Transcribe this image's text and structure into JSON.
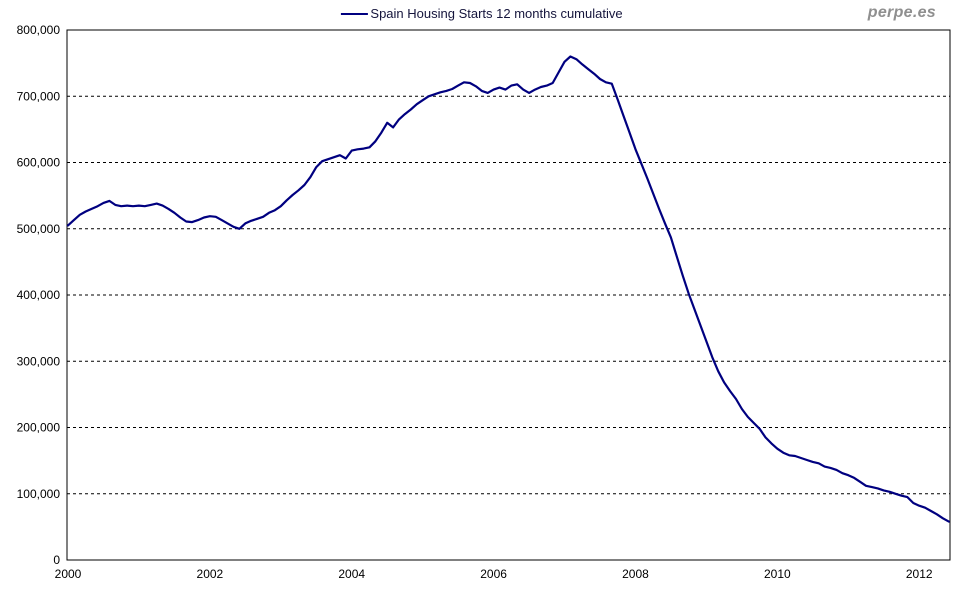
{
  "header": {
    "watermark": "perpe.es"
  },
  "chart_data": {
    "type": "line",
    "title": "",
    "xlabel": "",
    "ylabel": "",
    "legend_position": "top-center",
    "grid": "horizontal-dashed",
    "background": "#ffffff",
    "border_color": "#000000",
    "ylim": [
      0,
      800000
    ],
    "y_ticks": [
      0,
      100000,
      200000,
      300000,
      400000,
      500000,
      600000,
      700000,
      800000
    ],
    "xlim": [
      2000,
      2012.42
    ],
    "x_ticks": [
      2000,
      2002,
      2004,
      2006,
      2008,
      2010,
      2012
    ],
    "series": [
      {
        "name": "Spain Housing Starts 12 months cumulative",
        "color": "#000080",
        "x_start": 2000,
        "x_step_months": 1,
        "values": [
          505000,
          513000,
          521000,
          526000,
          530000,
          534000,
          539000,
          542000,
          536000,
          534000,
          535000,
          534000,
          535000,
          534000,
          536000,
          538000,
          535000,
          530000,
          524000,
          517000,
          511000,
          510000,
          513000,
          517000,
          519000,
          518000,
          513000,
          508000,
          503000,
          500000,
          508000,
          512000,
          515000,
          518000,
          524000,
          528000,
          534000,
          543000,
          551000,
          558000,
          566000,
          578000,
          593000,
          602000,
          605000,
          608000,
          611000,
          606000,
          618000,
          620000,
          621000,
          623000,
          632000,
          645000,
          660000,
          653000,
          665000,
          673000,
          680000,
          688000,
          694000,
          700000,
          703000,
          706000,
          708000,
          711000,
          716000,
          721000,
          720000,
          715000,
          708000,
          705000,
          710000,
          713000,
          710000,
          716000,
          718000,
          710000,
          705000,
          710000,
          714000,
          716000,
          720000,
          736000,
          752000,
          760000,
          756000,
          748000,
          741000,
          734000,
          726000,
          721000,
          719000,
          695000,
          670000,
          645000,
          620000,
          598000,
          576000,
          553000,
          530000,
          508000,
          487000,
          458000,
          429000,
          402000,
          378000,
          354000,
          330000,
          306000,
          285000,
          268000,
          255000,
          243000,
          228000,
          216000,
          207000,
          198000,
          185000,
          176000,
          168000,
          162000,
          158000,
          157000,
          154000,
          151000,
          148000,
          146000,
          141000,
          139000,
          136000,
          131000,
          128000,
          124000,
          118000,
          112000,
          110000,
          108000,
          105000,
          103000,
          100000,
          97000,
          95000,
          86000,
          82000,
          79000,
          74000,
          69000,
          63000,
          58000
        ]
      }
    ]
  }
}
